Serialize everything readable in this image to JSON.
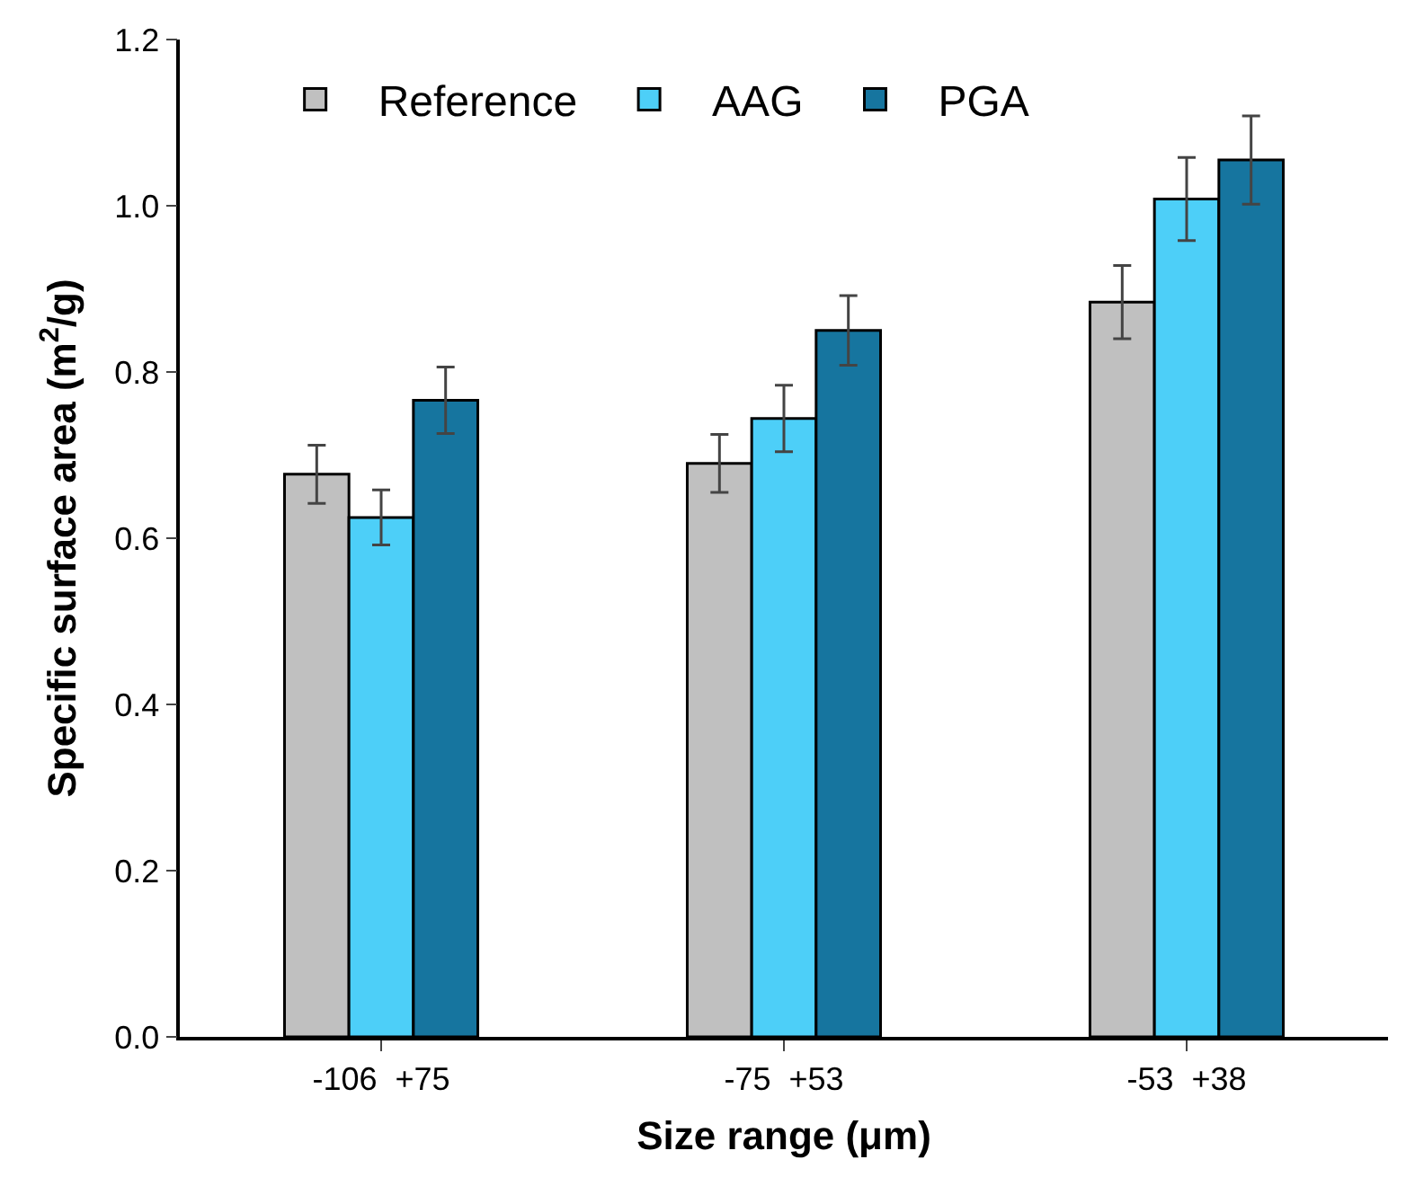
{
  "chart_data": {
    "type": "bar",
    "xlabel": "Size range (μm)",
    "ylabel": "Specific surface area (m$^{2}$/g)",
    "categories": [
      "-106  +75",
      "-75  +53",
      "-53  +38"
    ],
    "series": [
      {
        "name": "Reference",
        "color": "#c0c0c0",
        "values": [
          0.677,
          0.69,
          0.884
        ],
        "errors": [
          0.035,
          0.035,
          0.044
        ]
      },
      {
        "name": "AAG",
        "color": "#4dcff8",
        "values": [
          0.625,
          0.744,
          1.008
        ],
        "errors": [
          0.033,
          0.04,
          0.05
        ]
      },
      {
        "name": "PGA",
        "color": "#16759f",
        "values": [
          0.766,
          0.85,
          1.055
        ],
        "errors": [
          0.04,
          0.042,
          0.053
        ]
      }
    ],
    "ylim": [
      0,
      1.2
    ],
    "yticks": [
      {
        "value": 0,
        "label": "0.0"
      },
      0.2,
      0.4,
      0.6,
      0.8,
      {
        "value": 1,
        "label": "1.0"
      },
      1.2
    ],
    "legend": "top left"
  }
}
